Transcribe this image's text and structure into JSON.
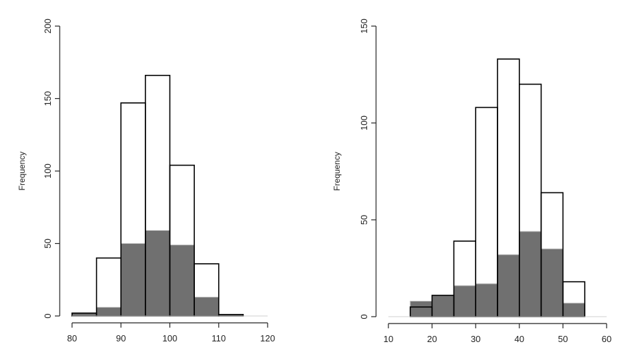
{
  "chart_data": [
    {
      "type": "bar",
      "subtype": "overlaid-histogram",
      "ylabel": "Frequency",
      "xlim": [
        80,
        120
      ],
      "ylim": [
        0,
        200
      ],
      "xticks": [
        80,
        90,
        100,
        110,
        120
      ],
      "yticks": [
        0,
        50,
        100,
        150,
        200
      ],
      "bin_width": 5,
      "series": [
        {
          "style": "outline",
          "color": "#000000",
          "bins": [
            {
              "x0": 80,
              "x1": 85,
              "value": 2
            },
            {
              "x0": 85,
              "x1": 90,
              "value": 40
            },
            {
              "x0": 90,
              "x1": 95,
              "value": 147
            },
            {
              "x0": 95,
              "x1": 100,
              "value": 166
            },
            {
              "x0": 100,
              "x1": 105,
              "value": 104
            },
            {
              "x0": 105,
              "x1": 110,
              "value": 36
            },
            {
              "x0": 110,
              "x1": 115,
              "value": 1
            },
            {
              "x0": 115,
              "x1": 120,
              "value": 0
            }
          ]
        },
        {
          "style": "filled",
          "color": "#707070",
          "bins": [
            {
              "x0": 80,
              "x1": 85,
              "value": 2
            },
            {
              "x0": 85,
              "x1": 90,
              "value": 6
            },
            {
              "x0": 90,
              "x1": 95,
              "value": 50
            },
            {
              "x0": 95,
              "x1": 100,
              "value": 59
            },
            {
              "x0": 100,
              "x1": 105,
              "value": 49
            },
            {
              "x0": 105,
              "x1": 110,
              "value": 13
            },
            {
              "x0": 110,
              "x1": 115,
              "value": 1
            }
          ]
        }
      ]
    },
    {
      "type": "bar",
      "subtype": "overlaid-histogram",
      "ylabel": "Frequency",
      "xlim": [
        10,
        60
      ],
      "ylim": [
        0,
        150
      ],
      "xticks": [
        10,
        20,
        30,
        40,
        50,
        60
      ],
      "yticks": [
        0,
        50,
        100,
        150
      ],
      "bin_width": 5,
      "series": [
        {
          "style": "outline",
          "color": "#000000",
          "bins": [
            {
              "x0": 15,
              "x1": 20,
              "value": 5
            },
            {
              "x0": 20,
              "x1": 25,
              "value": 11
            },
            {
              "x0": 25,
              "x1": 30,
              "value": 39
            },
            {
              "x0": 30,
              "x1": 35,
              "value": 108
            },
            {
              "x0": 35,
              "x1": 40,
              "value": 133
            },
            {
              "x0": 40,
              "x1": 45,
              "value": 120
            },
            {
              "x0": 45,
              "x1": 50,
              "value": 64
            },
            {
              "x0": 50,
              "x1": 55,
              "value": 18
            }
          ]
        },
        {
          "style": "filled",
          "color": "#707070",
          "bins": [
            {
              "x0": 15,
              "x1": 20,
              "value": 8
            },
            {
              "x0": 20,
              "x1": 25,
              "value": 11
            },
            {
              "x0": 25,
              "x1": 30,
              "value": 16
            },
            {
              "x0": 30,
              "x1": 35,
              "value": 17
            },
            {
              "x0": 35,
              "x1": 40,
              "value": 32
            },
            {
              "x0": 40,
              "x1": 45,
              "value": 44
            },
            {
              "x0": 45,
              "x1": 50,
              "value": 35
            },
            {
              "x0": 50,
              "x1": 55,
              "value": 7
            }
          ]
        }
      ]
    }
  ]
}
